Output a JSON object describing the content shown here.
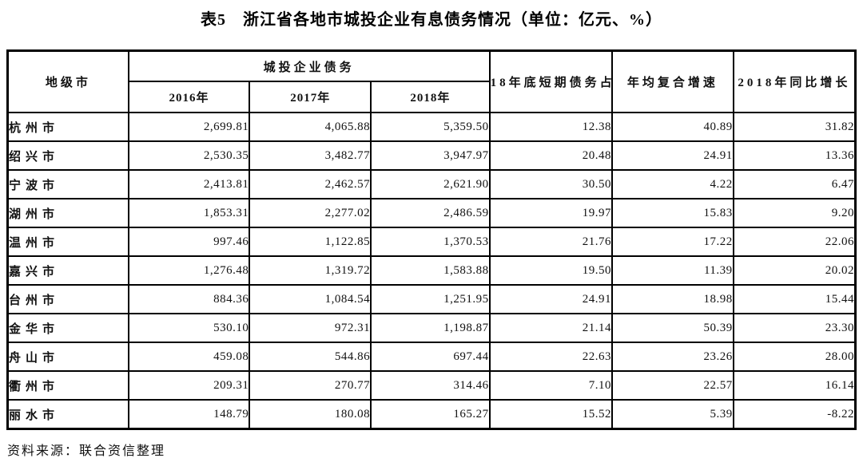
{
  "title": "表5　浙江省各地市城投企业有息债务情况（单位：亿元、%）",
  "table": {
    "header": {
      "city": "地级市",
      "debt_group": "城投企业债务",
      "year_2016": "2016年",
      "year_2017": "2017年",
      "year_2018": "2018年",
      "short_term_share": "18年底短期债务占",
      "cagr": "年均复合增速",
      "yoy_2018": "2018年同比增长"
    },
    "rows": [
      {
        "city": "杭州市",
        "y2016": "2,699.81",
        "y2017": "4,065.88",
        "y2018": "5,359.50",
        "short_term": "12.38",
        "cagr": "40.89",
        "yoy": "31.82"
      },
      {
        "city": "绍兴市",
        "y2016": "2,530.35",
        "y2017": "3,482.77",
        "y2018": "3,947.97",
        "short_term": "20.48",
        "cagr": "24.91",
        "yoy": "13.36"
      },
      {
        "city": "宁波市",
        "y2016": "2,413.81",
        "y2017": "2,462.57",
        "y2018": "2,621.90",
        "short_term": "30.50",
        "cagr": "4.22",
        "yoy": "6.47"
      },
      {
        "city": "湖州市",
        "y2016": "1,853.31",
        "y2017": "2,277.02",
        "y2018": "2,486.59",
        "short_term": "19.97",
        "cagr": "15.83",
        "yoy": "9.20"
      },
      {
        "city": "温州市",
        "y2016": "997.46",
        "y2017": "1,122.85",
        "y2018": "1,370.53",
        "short_term": "21.76",
        "cagr": "17.22",
        "yoy": "22.06"
      },
      {
        "city": "嘉兴市",
        "y2016": "1,276.48",
        "y2017": "1,319.72",
        "y2018": "1,583.88",
        "short_term": "19.50",
        "cagr": "11.39",
        "yoy": "20.02"
      },
      {
        "city": "台州市",
        "y2016": "884.36",
        "y2017": "1,084.54",
        "y2018": "1,251.95",
        "short_term": "24.91",
        "cagr": "18.98",
        "yoy": "15.44"
      },
      {
        "city": "金华市",
        "y2016": "530.10",
        "y2017": "972.31",
        "y2018": "1,198.87",
        "short_term": "21.14",
        "cagr": "50.39",
        "yoy": "23.30"
      },
      {
        "city": "舟山市",
        "y2016": "459.08",
        "y2017": "544.86",
        "y2018": "697.44",
        "short_term": "22.63",
        "cagr": "23.26",
        "yoy": "28.00"
      },
      {
        "city": "衢州市",
        "y2016": "209.31",
        "y2017": "270.77",
        "y2018": "314.46",
        "short_term": "7.10",
        "cagr": "22.57",
        "yoy": "16.14"
      },
      {
        "city": "丽水市",
        "y2016": "148.79",
        "y2017": "180.08",
        "y2018": "165.27",
        "short_term": "15.52",
        "cagr": "5.39",
        "yoy": "-8.22"
      }
    ]
  },
  "source": "资料来源：联合资信整理"
}
